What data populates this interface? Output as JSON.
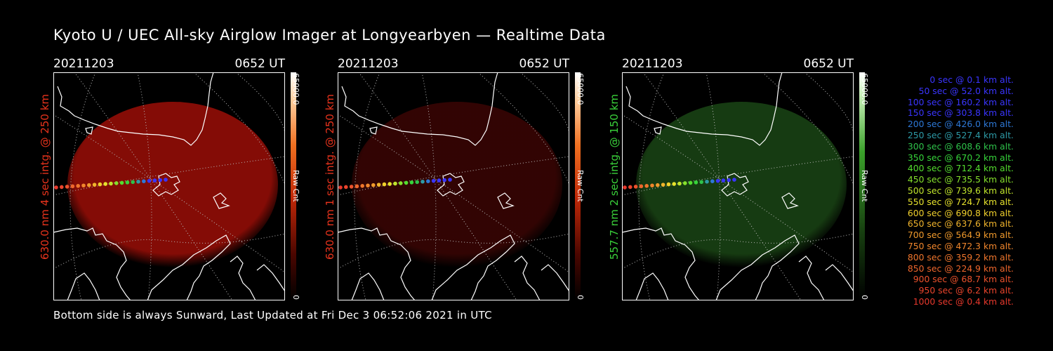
{
  "title": "Kyoto U / UEC All-sky Airglow Imager at Longyearbyen — Realtime Data",
  "footer": "Bottom side is always Sunward, Last Updated at Fri Dec  3 06:52:06 2021 in UTC",
  "panels": [
    {
      "date": "20211203",
      "time": "0652 UT",
      "side_label": "630.0 nm 4 sec intg. @ 250 km",
      "side_color": "#e8331c",
      "bar_max": "65000.0",
      "bar_min": "0",
      "bar_unit": "Raw Cnt",
      "glow": "#b01008",
      "glow_opacity": "0.75"
    },
    {
      "date": "20211203",
      "time": "0652 UT",
      "side_label": "630.0 nm 1 sec intg. @ 250 km",
      "side_color": "#e8331c",
      "bar_max": "65000.0",
      "bar_min": "0",
      "bar_unit": "Raw Cnt",
      "glow": "#5a0806",
      "glow_opacity": "0.55"
    },
    {
      "date": "20211203",
      "time": "0652 UT",
      "side_label": "557.7 nm 2 sec intg. @ 150 km",
      "side_color": "#3ad13a",
      "bar_max": "65000.0",
      "bar_min": "0",
      "bar_unit": "Raw Cnt",
      "glow": "#1c4a16",
      "glow_opacity": "0.8"
    }
  ],
  "legend": [
    {
      "text": "0 sec @    0.1 km alt.",
      "color": "#3a35ff"
    },
    {
      "text": "50 sec @   52.0 km alt.",
      "color": "#3a35ff"
    },
    {
      "text": "100 sec @  160.2 km alt.",
      "color": "#3a35ff"
    },
    {
      "text": "150 sec @  303.8 km alt.",
      "color": "#3a35ff"
    },
    {
      "text": "200 sec @  426.0 km alt.",
      "color": "#2d78d6"
    },
    {
      "text": "250 sec @  527.4 km alt.",
      "color": "#2d9aa6"
    },
    {
      "text": "300 sec @  608.6 km alt.",
      "color": "#2ec24a"
    },
    {
      "text": "350 sec @  670.2 km alt.",
      "color": "#36d43a"
    },
    {
      "text": "400 sec @  712.4 km alt.",
      "color": "#54dd2e"
    },
    {
      "text": "450 sec @  735.5 km alt.",
      "color": "#85e02c"
    },
    {
      "text": "500 sec @  739.6 km alt.",
      "color": "#c0e42c"
    },
    {
      "text": "550 sec @  724.7 km alt.",
      "color": "#e6e22c"
    },
    {
      "text": "600 sec @  690.8 km alt.",
      "color": "#f0d02c"
    },
    {
      "text": "650 sec @  637.6 km alt.",
      "color": "#f0b42c"
    },
    {
      "text": "700 sec @  564.9 km alt.",
      "color": "#f09a2c"
    },
    {
      "text": "750 sec @  472.3 km alt.",
      "color": "#f0862c"
    },
    {
      "text": "800 sec @  359.2 km alt.",
      "color": "#f0762c"
    },
    {
      "text": "850 sec @  224.9 km alt.",
      "color": "#ee662c"
    },
    {
      "text": "900 sec @   68.7 km alt.",
      "color": "#ec522c"
    },
    {
      "text": "950 sec @    6.2 km alt.",
      "color": "#ea442c"
    },
    {
      "text": "1000 sec @    0.4 km alt.",
      "color": "#e8382c"
    }
  ]
}
